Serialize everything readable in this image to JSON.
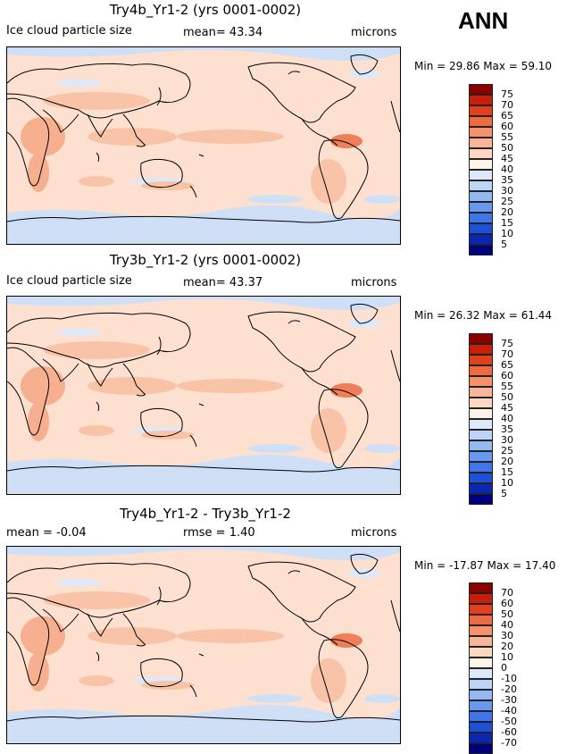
{
  "season": "ANN",
  "panels": [
    {
      "title": "Try4b_Yr1-2 (yrs 0001-0002)",
      "left_label": "Ice cloud particle size",
      "mean_label": "mean=  43.34",
      "units": "microns",
      "min_label": "Min =",
      "min_value": "29.86",
      "max_label": "Max =",
      "max_value": "59.10",
      "colorbar": {
        "labels": [
          "75",
          "70",
          "65",
          "60",
          "55",
          "50",
          "45",
          "40",
          "35",
          "30",
          "25",
          "20",
          "15",
          "10",
          "5"
        ],
        "colors": [
          "#8b0000",
          "#c81e0a",
          "#e0411c",
          "#ef6a3e",
          "#f5916b",
          "#f9b597",
          "#fcd7c2",
          "#fff4e8",
          "#dde9f8",
          "#bcd4f5",
          "#94b9f2",
          "#6898ef",
          "#3f76ec",
          "#1e50d8",
          "#0a28b4",
          "#00007f"
        ]
      }
    },
    {
      "title": "Try3b_Yr1-2 (yrs 0001-0002)",
      "left_label": "Ice cloud particle size",
      "mean_label": "mean=  43.37",
      "units": "microns",
      "min_label": "Min =",
      "min_value": "26.32",
      "max_label": "Max =",
      "max_value": "61.44",
      "colorbar": {
        "labels": [
          "75",
          "70",
          "65",
          "60",
          "55",
          "50",
          "45",
          "40",
          "35",
          "30",
          "25",
          "20",
          "15",
          "10",
          "5"
        ],
        "colors": [
          "#8b0000",
          "#c81e0a",
          "#e0411c",
          "#ef6a3e",
          "#f5916b",
          "#f9b597",
          "#fcd7c2",
          "#fff4e8",
          "#dde9f8",
          "#bcd4f5",
          "#94b9f2",
          "#6898ef",
          "#3f76ec",
          "#1e50d8",
          "#0a28b4",
          "#00007f"
        ]
      }
    },
    {
      "title": "Try4b_Yr1-2 - Try3b_Yr1-2",
      "mean_label": "mean =   -0.04",
      "rmse_label": "rmse =    1.40",
      "units": "microns",
      "min_label": "Min =",
      "min_value": "-17.87",
      "max_label": "Max =",
      "max_value": "17.40",
      "colorbar": {
        "labels": [
          "70",
          "60",
          "50",
          "40",
          "30",
          "20",
          "10",
          "0",
          "-10",
          "-20",
          "-30",
          "-40",
          "-50",
          "-60",
          "-70"
        ],
        "colors": [
          "#8b0000",
          "#c81e0a",
          "#e0411c",
          "#ef6a3e",
          "#f5916b",
          "#f9b597",
          "#fcd7c2",
          "#fff4e8",
          "#dde9f8",
          "#bcd4f5",
          "#94b9f2",
          "#6898ef",
          "#3f76ec",
          "#1e50d8",
          "#0a28b4",
          "#00007f"
        ]
      }
    }
  ]
}
